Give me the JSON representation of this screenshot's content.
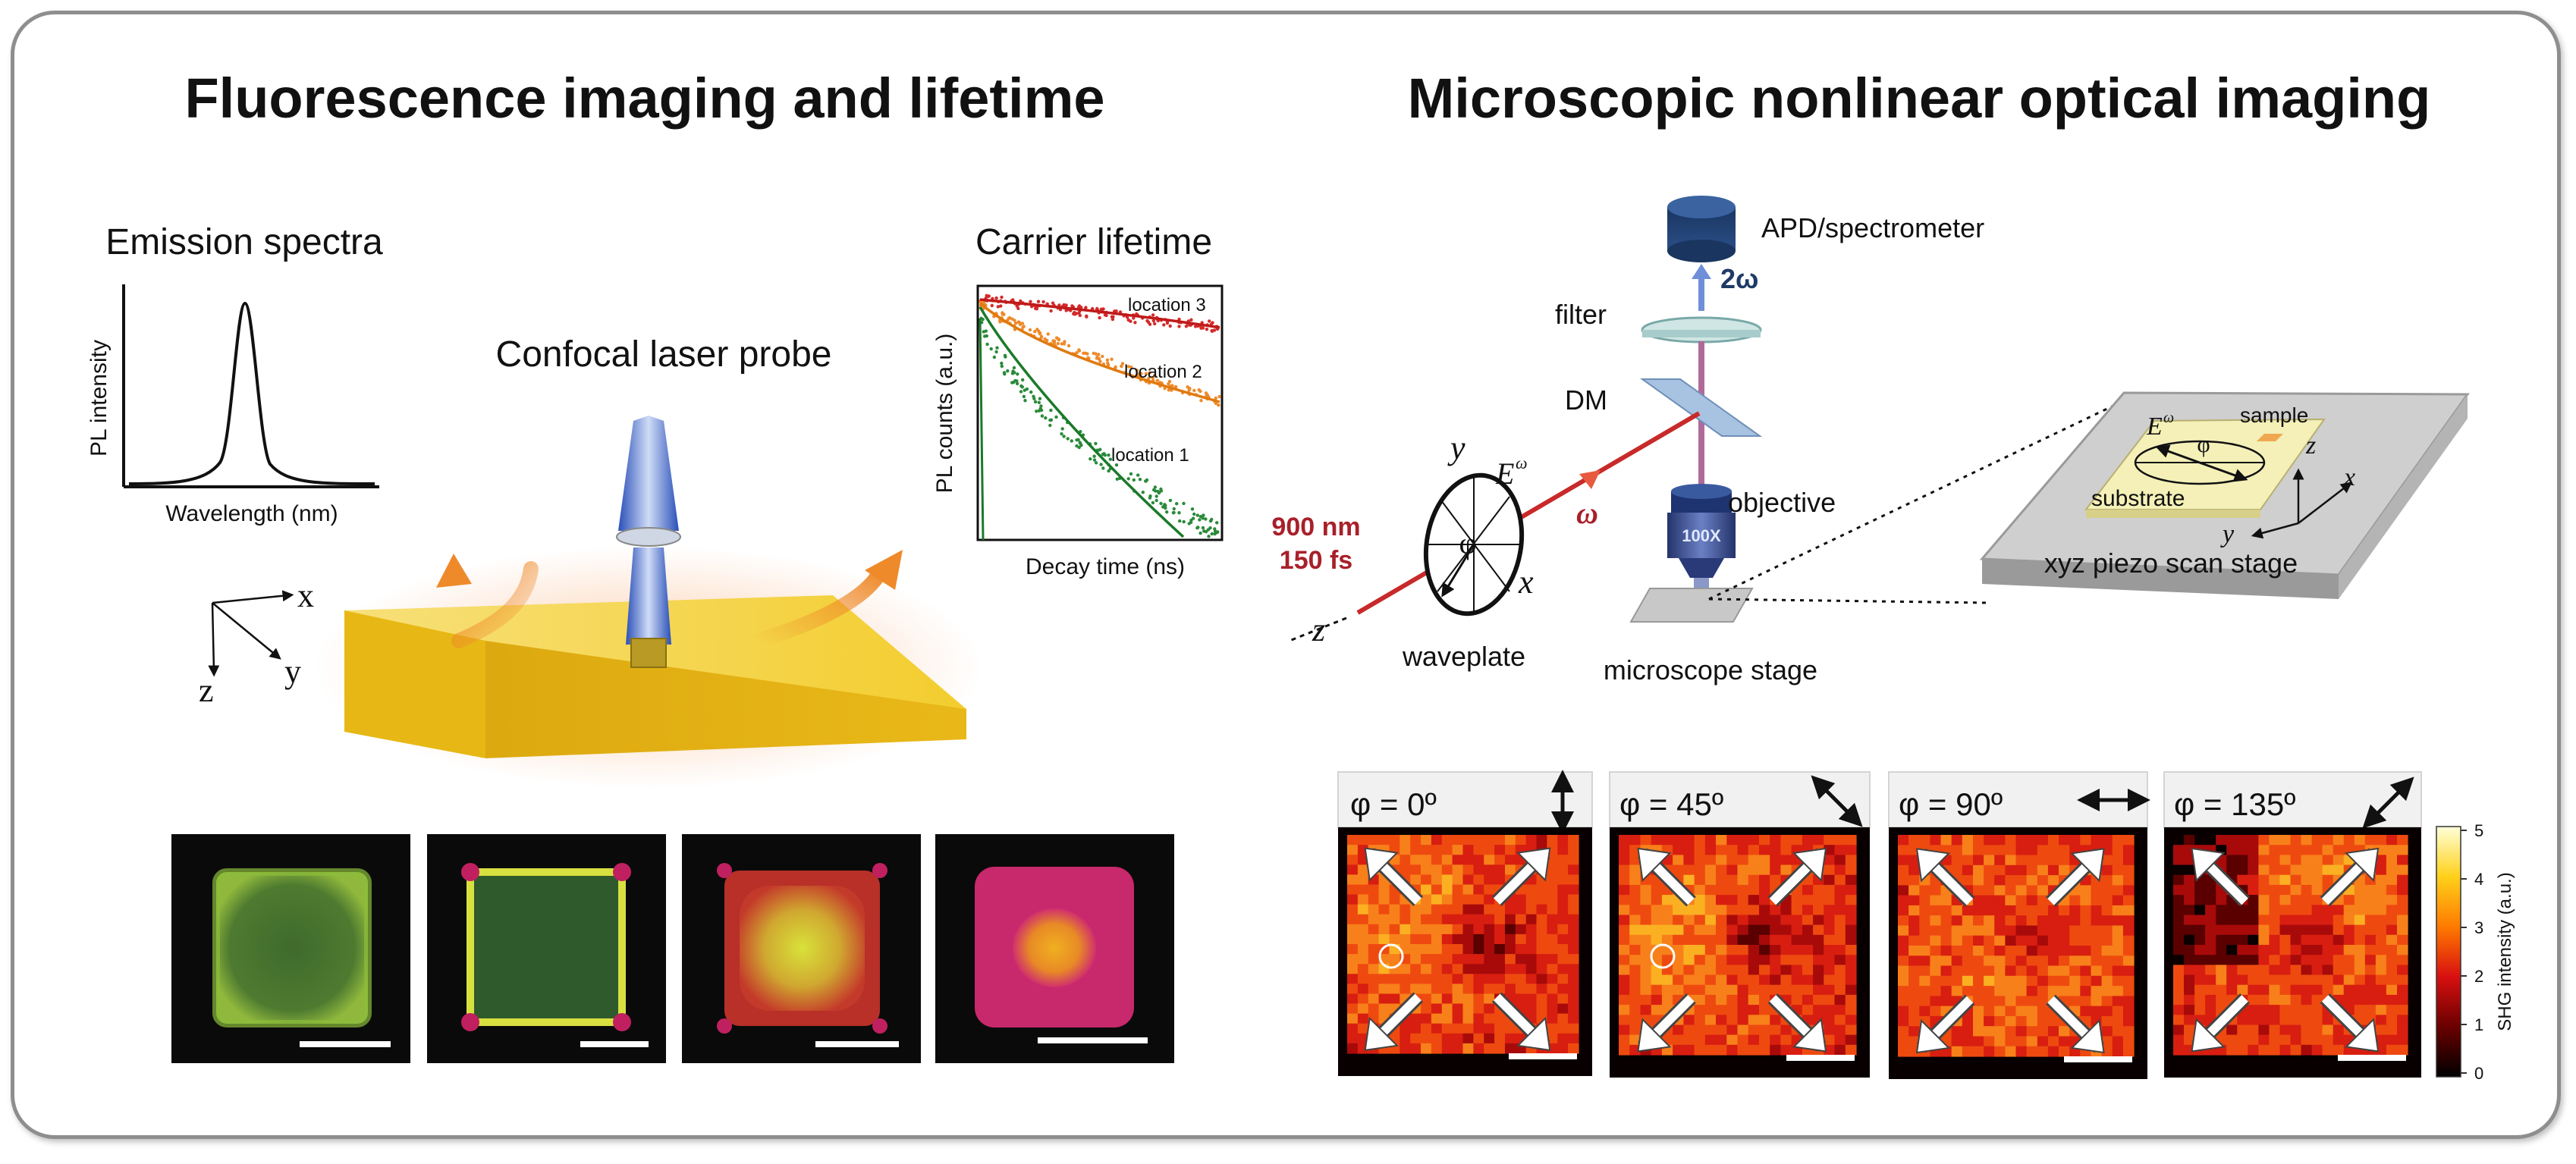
{
  "titles": {
    "left": "Fluorescence imaging and lifetime",
    "right": "Microscopic nonlinear optical imaging"
  },
  "emission": {
    "title": "Emission spectra",
    "ylabel": "PL intensity",
    "xlabel": "Wavelength (nm)"
  },
  "confocal": {
    "label": "Confocal laser probe",
    "axes": {
      "x": "x",
      "y": "y",
      "z": "z"
    }
  },
  "lifetime": {
    "title": "Carrier lifetime",
    "ylabel": "PL counts (a.u.)",
    "xlabel": "Decay time (ns)",
    "series": [
      {
        "name": "location 3",
        "color": "#d42a2a"
      },
      {
        "name": "location 2",
        "color": "#ee8a2a"
      },
      {
        "name": "location 1",
        "color": "#2a8a3a"
      }
    ]
  },
  "setup": {
    "apd": "APD/spectrometer",
    "two_omega": "2ω",
    "filter": "filter",
    "dm": "DM",
    "objective": "objective",
    "objective_mag": "100X",
    "laser_wavelength": "900 nm",
    "laser_pulse": "150 fs",
    "omega": "ω",
    "waveplate": "waveplate",
    "field": "E",
    "field_sup": "ω",
    "phi": "φ",
    "ax_x": "x",
    "ax_y": "y",
    "ax_z": "z",
    "stage": "microscope stage"
  },
  "piezo": {
    "label": "xyz piezo scan stage",
    "sample": "sample",
    "substrate": "substrate",
    "field": "E",
    "field_sup": "ω",
    "phi": "φ",
    "ax_x": "x",
    "ax_y": "y",
    "ax_z": "z"
  },
  "fluor_images": [
    {
      "name": "green-square"
    },
    {
      "name": "green-square-yellow-edge"
    },
    {
      "name": "yellow-center-red-edge"
    },
    {
      "name": "orange-center-magenta-edge"
    }
  ],
  "shg_panels": [
    {
      "label": "φ = 0º",
      "polarization": "vertical"
    },
    {
      "label": "φ = 45º",
      "polarization": "diagonal-down"
    },
    {
      "label": "φ = 90º",
      "polarization": "horizontal"
    },
    {
      "label": "φ = 135º",
      "polarization": "diagonal-up"
    }
  ],
  "colorbar": {
    "label": "SHG intensity (a.u.)",
    "ticks": [
      "5",
      "4",
      "3",
      "2",
      "1",
      "0"
    ]
  },
  "colors": {
    "laser_red": "#a8202a",
    "yellow_plate": "#f2c41a",
    "orange_arrow": "#ee8a2a",
    "navy": "#1e3a66"
  }
}
